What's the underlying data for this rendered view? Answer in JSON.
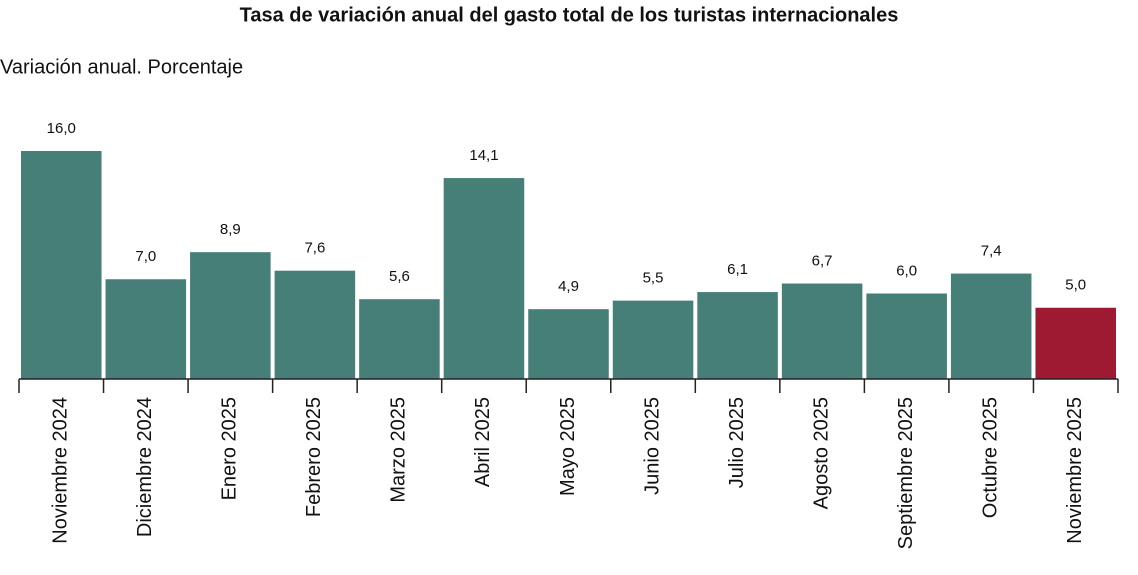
{
  "chart_data": {
    "type": "bar",
    "title": "Tasa de variación anual del gasto total de los turistas internacionales",
    "subtitle": "Variación anual. Porcentaje",
    "categories": [
      "Noviembre 2024",
      "Diciembre 2024",
      "Enero 2025",
      "Febrero 2025",
      "Marzo 2025",
      "Abril 2025",
      "Mayo 2025",
      "Junio 2025",
      "Julio 2025",
      "Agosto 2025",
      "Septiembre 2025",
      "Octubre 2025",
      "Noviembre 2025"
    ],
    "values": [
      16.0,
      7.0,
      8.9,
      7.6,
      5.6,
      14.1,
      4.9,
      5.5,
      6.1,
      6.7,
      6.0,
      7.4,
      5.0
    ],
    "value_labels": [
      "16,0",
      "7,0",
      "8,9",
      "7,6",
      "5,6",
      "14,1",
      "4,9",
      "5,5",
      "6,1",
      "6,7",
      "6,0",
      "7,4",
      "5,0"
    ],
    "colors": [
      "#457f78",
      "#457f78",
      "#457f78",
      "#457f78",
      "#457f78",
      "#457f78",
      "#457f78",
      "#457f78",
      "#457f78",
      "#457f78",
      "#457f78",
      "#457f78",
      "#9e1a32"
    ]
  }
}
